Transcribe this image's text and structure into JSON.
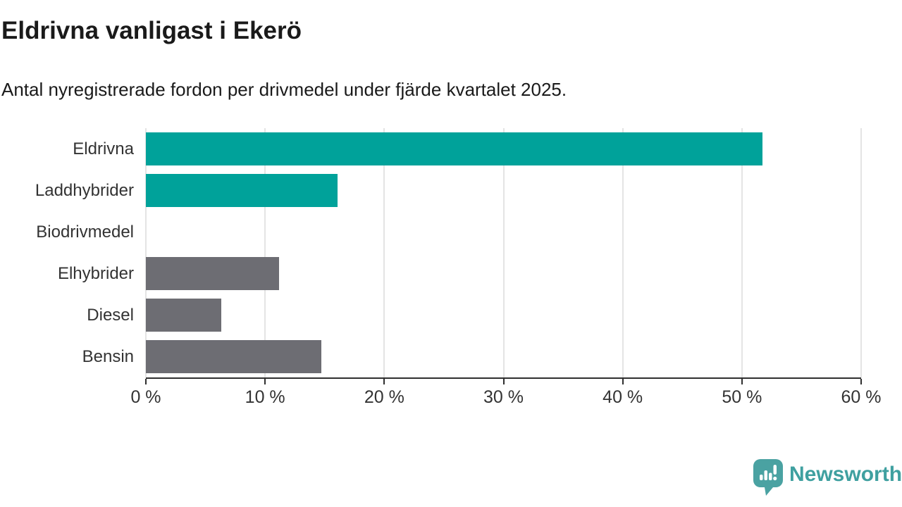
{
  "header": {
    "title": "Eldrivna vanligast i Ekerö",
    "subtitle": "Antal nyregistrerade fordon per drivmedel under fjärde kvartalet 2025."
  },
  "chart_data": {
    "type": "bar",
    "orientation": "horizontal",
    "title": "Eldrivna vanligast i Ekerö",
    "subtitle": "Antal nyregistrerade fordon per drivmedel under fjärde kvartalet 2025.",
    "categories": [
      "Eldrivna",
      "Laddhybrider",
      "Biodrivmedel",
      "Elhybrider",
      "Diesel",
      "Bensin"
    ],
    "values": [
      51.7,
      16.1,
      0,
      11.2,
      6.3,
      14.7
    ],
    "unit": "%",
    "xlim": [
      0,
      60
    ],
    "x_ticks": [
      0,
      10,
      20,
      30,
      40,
      50,
      60
    ],
    "x_tick_labels": [
      "0 %",
      "10 %",
      "20 %",
      "30 %",
      "40 %",
      "50 %",
      "60 %"
    ],
    "bar_colors": [
      "#00a29a",
      "#00a29a",
      "#6d6d73",
      "#6d6d73",
      "#6d6d73",
      "#6d6d73"
    ],
    "highlight_color": "#00a29a",
    "default_color": "#6d6d73",
    "grid": true,
    "gridline_color": "#e4e4e4",
    "axis_color": "#2f2f2f",
    "legend": "none"
  },
  "footer": {
    "brand": "Newsworthy",
    "brand_color": "#3fa0a0",
    "icon_color": "#4aa2a2",
    "icon": "bar-chart-speech-bubble"
  }
}
